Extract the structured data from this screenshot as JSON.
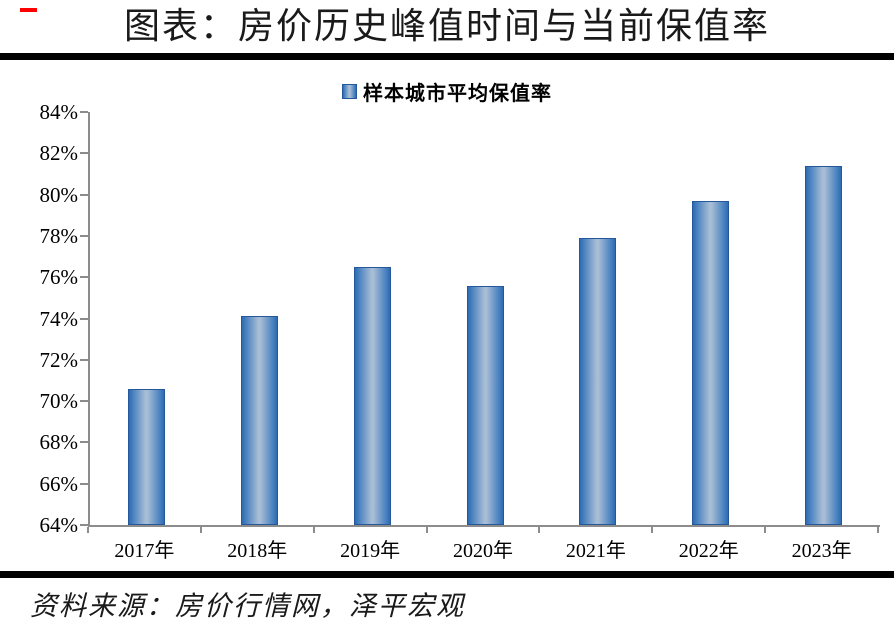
{
  "header": {
    "title": "图表：房价历史峰值时间与当前保值率",
    "red_dash_color": "#FF0000"
  },
  "legend": {
    "label": "样本城市平均保值率",
    "swatch_icon": "legend-square-icon"
  },
  "chart_data": {
    "type": "bar",
    "title": "样本城市平均保值率",
    "categories": [
      "2017年",
      "2018年",
      "2019年",
      "2020年",
      "2021年",
      "2022年",
      "2023年"
    ],
    "values": [
      70.6,
      74.1,
      76.5,
      75.6,
      77.9,
      79.7,
      81.4
    ],
    "value_unit": "%",
    "xlabel": "",
    "ylabel": "",
    "ylim": [
      64,
      84
    ],
    "ytick_step": 2,
    "ytick_labels": [
      "64%",
      "66%",
      "68%",
      "70%",
      "72%",
      "74%",
      "76%",
      "78%",
      "80%",
      "82%",
      "84%"
    ],
    "grid": false,
    "legend_position": "top-center",
    "bar_edge_color": "#2E6BB2",
    "bar_center_color": "#A9BED5",
    "bar_border_color": "#24589A",
    "axis_color": "#8C8C8C"
  },
  "footer": {
    "source": "资料来源：房价行情网，泽平宏观"
  }
}
